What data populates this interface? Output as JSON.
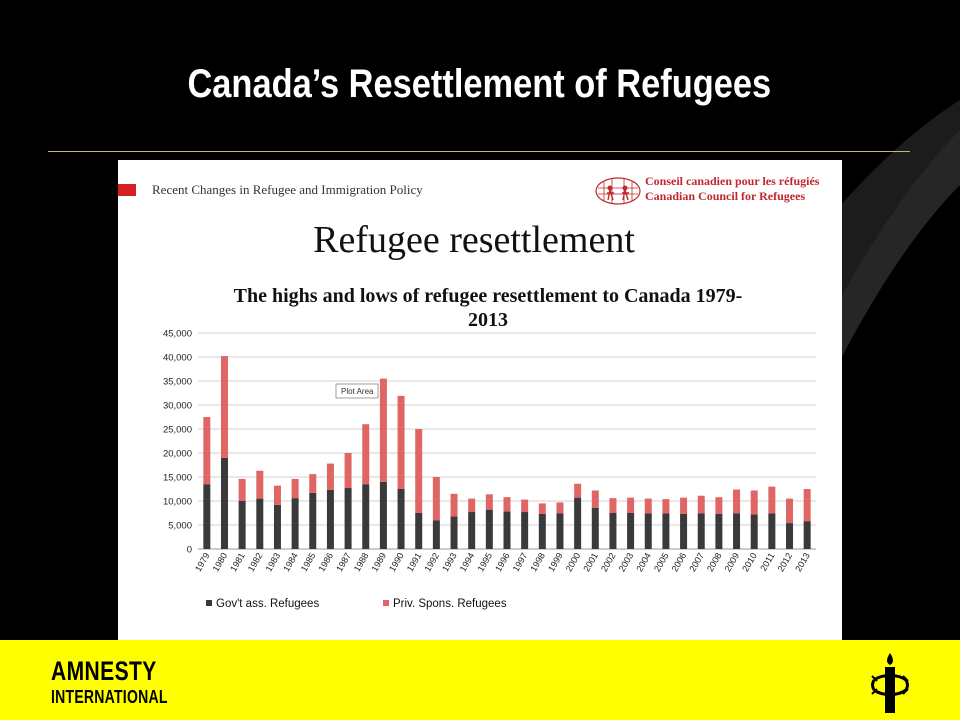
{
  "slide": {
    "title": "Canada’s Resettlement of Refugees",
    "panel_title": "Recent Changes in Refugee and Immigration Policy",
    "ccr_line1": "Conseil canadien pour les réfugiés",
    "ccr_line2": "Canadian Council for Refugees",
    "heading": "Refugee resettlement",
    "chart_tooltip": "Plot Area"
  },
  "footer": {
    "brand_line1": "AMNESTY",
    "brand_line2": "INTERNATIONAL",
    "logo_icon": "candle-barbed-wire-icon"
  },
  "chart_data": {
    "type": "bar",
    "stacked": true,
    "title": "The highs and lows of refugee resettlement to Canada 1979-2013",
    "title_lines": [
      "The highs and lows of refugee resettlement to Canada 1979-",
      "2013"
    ],
    "categories": [
      "1979",
      "1980",
      "1981",
      "1982",
      "1983",
      "1984",
      "1985",
      "1986",
      "1987",
      "1988",
      "1989",
      "1990",
      "1991",
      "1992",
      "1993",
      "1994",
      "1995",
      "1996",
      "1997",
      "1998",
      "1999",
      "2000",
      "2001",
      "2002",
      "2003",
      "2004",
      "2005",
      "2006",
      "2007",
      "2008",
      "2009",
      "2010",
      "2011",
      "2012",
      "2013"
    ],
    "series": [
      {
        "name": "Gov't ass. Refugees",
        "color": "#3a3a3a",
        "values": [
          13500,
          19000,
          10000,
          10500,
          9200,
          10600,
          11700,
          12300,
          12700,
          13500,
          14000,
          12500,
          7500,
          6000,
          6800,
          7700,
          8200,
          7800,
          7700,
          7300,
          7400,
          10700,
          8600,
          7500,
          7500,
          7400,
          7400,
          7300,
          7400,
          7300,
          7400,
          7200,
          7400,
          5400,
          5800
        ]
      },
      {
        "name": "Priv. Spons. Refugees",
        "color": "#e06666",
        "values": [
          14000,
          21200,
          4600,
          5800,
          4000,
          4000,
          3900,
          5500,
          7300,
          12500,
          21500,
          19400,
          17500,
          9000,
          4700,
          2800,
          3200,
          3000,
          2600,
          2200,
          2300,
          2900,
          3600,
          3100,
          3200,
          3100,
          3000,
          3400,
          3700,
          3500,
          5000,
          5000,
          5600,
          5100,
          6700
        ]
      }
    ],
    "ylim": [
      0,
      45000
    ],
    "yticks": [
      0,
      5000,
      10000,
      15000,
      20000,
      25000,
      30000,
      35000,
      40000,
      45000
    ],
    "ytick_labels": [
      "0",
      "5,000",
      "10,000",
      "15,000",
      "20,000",
      "25,000",
      "30,000",
      "35,000",
      "40,000",
      "45,000"
    ],
    "grid": true,
    "legend_position": "bottom-left",
    "xlabel": "",
    "ylabel": ""
  }
}
